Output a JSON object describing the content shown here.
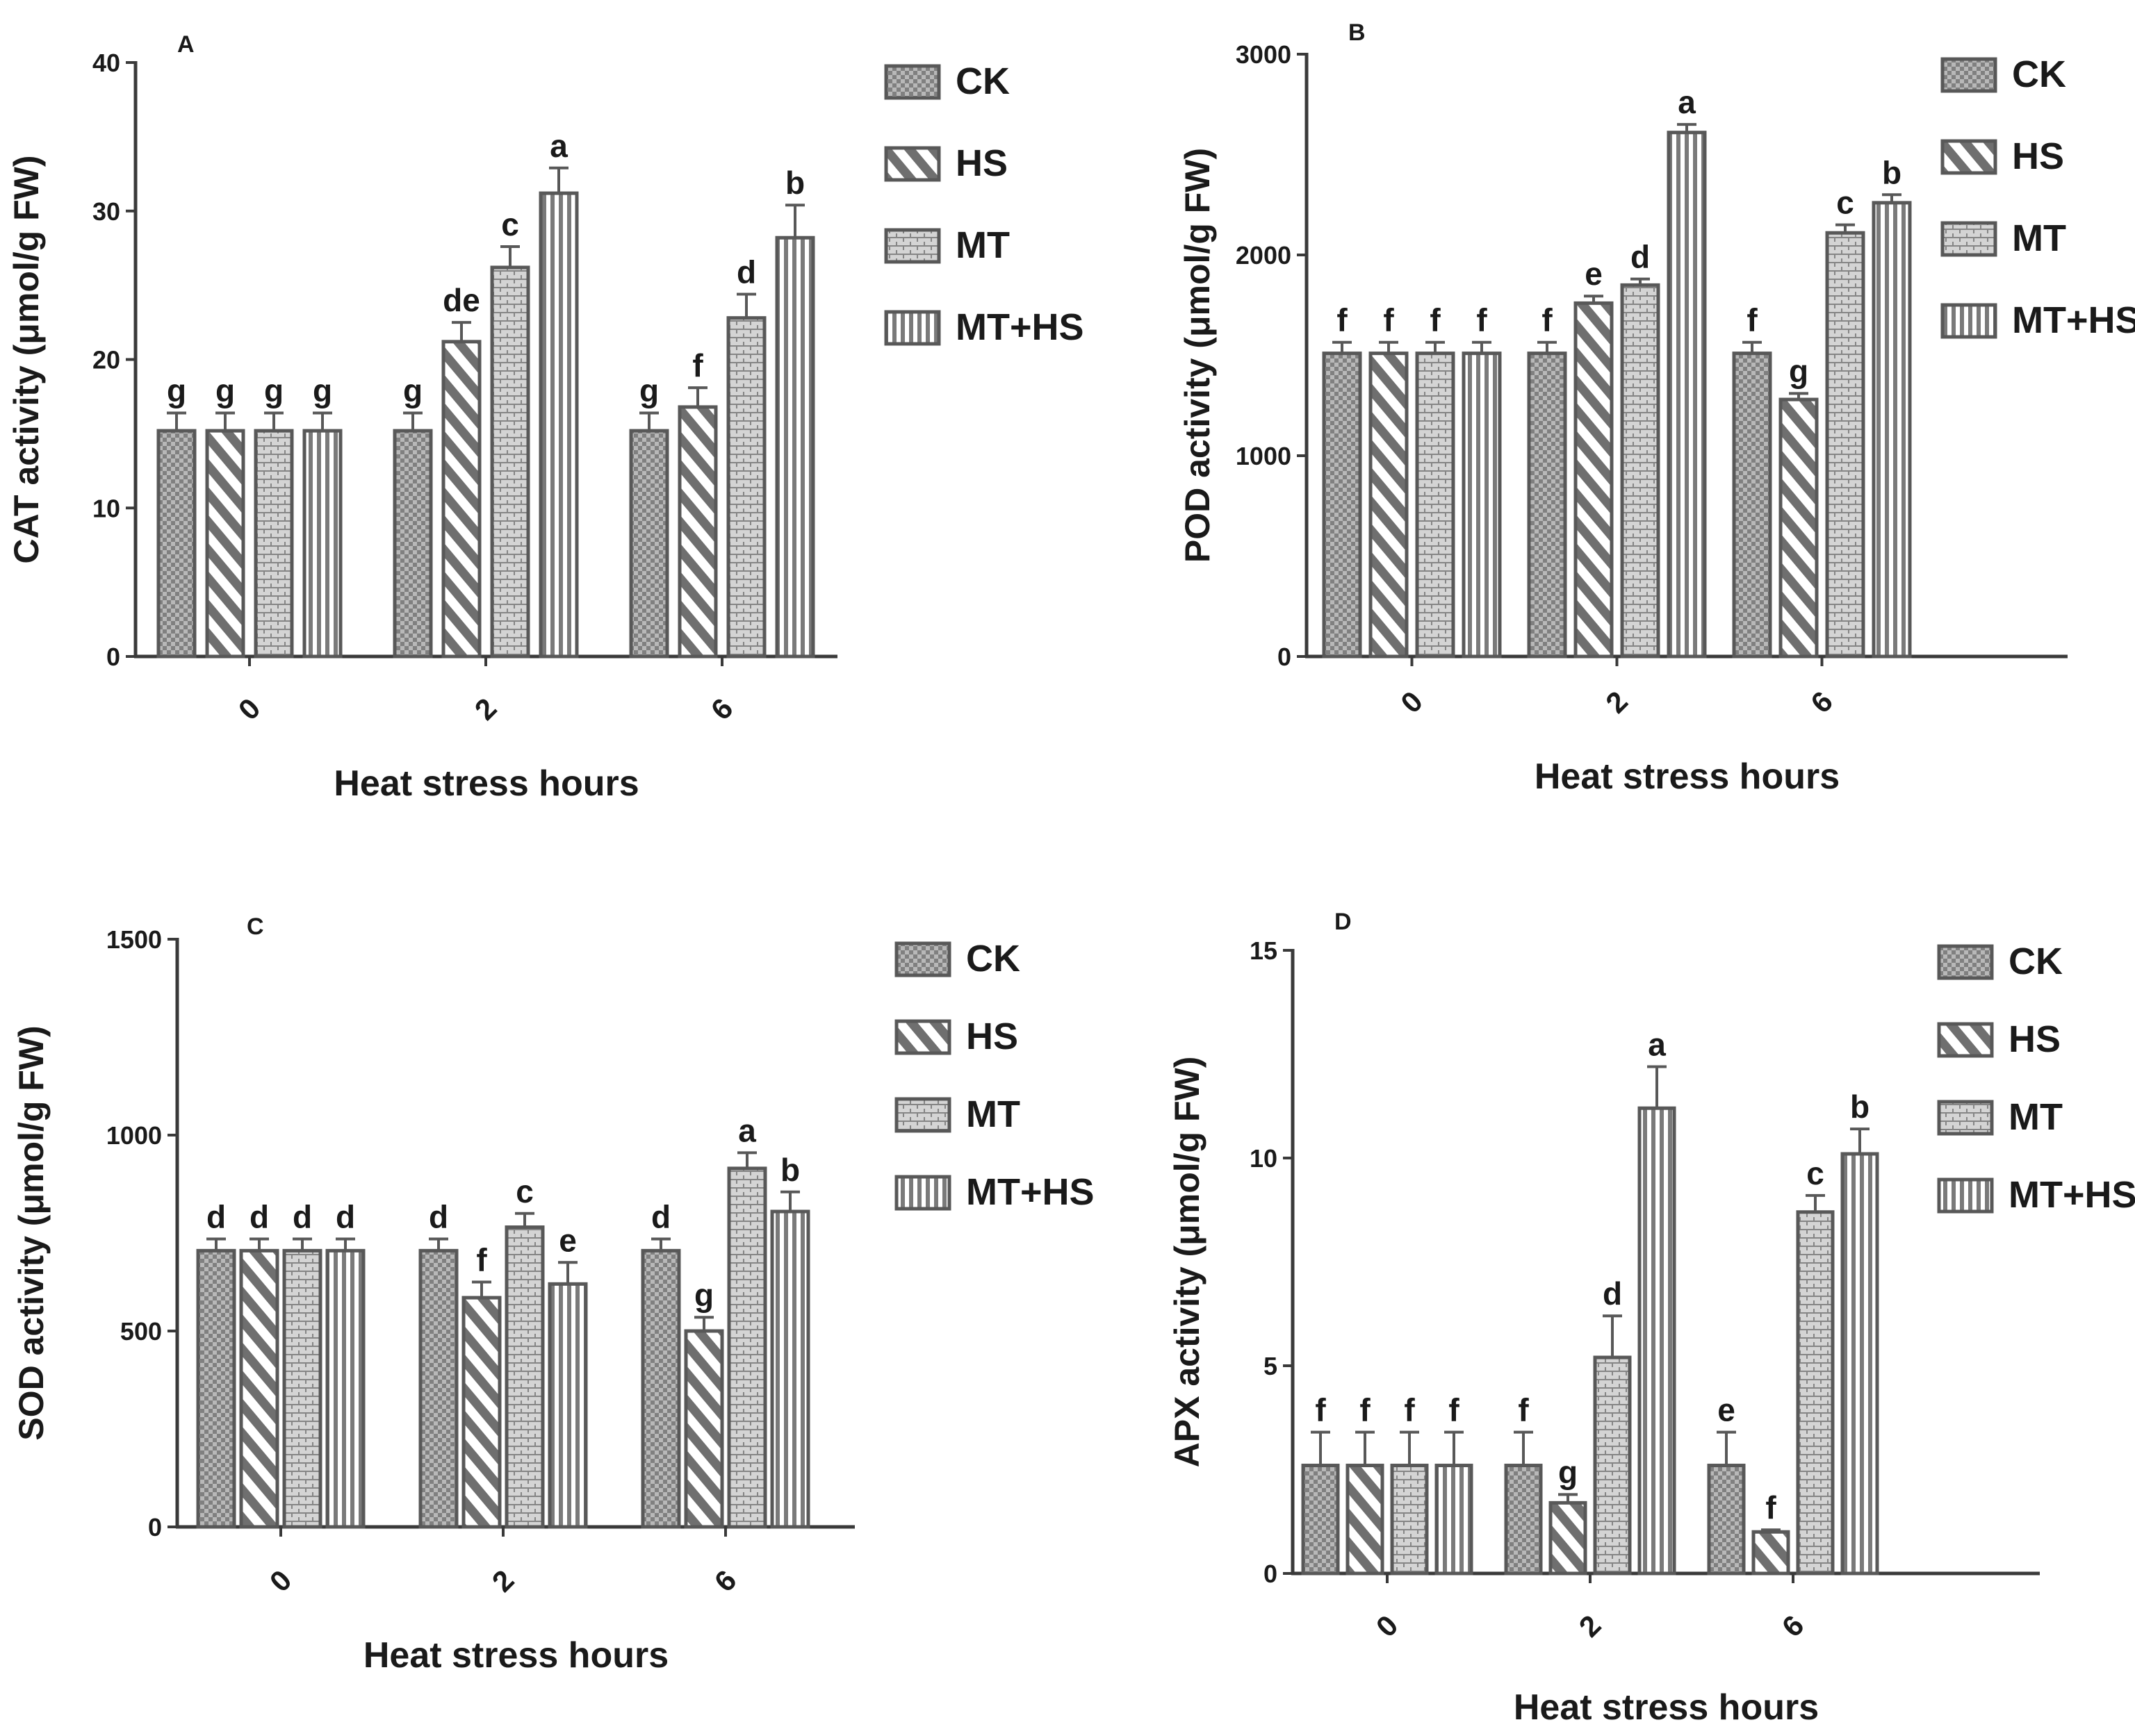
{
  "figure": {
    "xlabel": "Heat stress hours"
  },
  "chart_data": [
    {
      "type": "bar",
      "panel": "A",
      "title": "",
      "xlabel": "Heat stress hours",
      "ylabel": "CAT activity (μmol/g FW)",
      "ylim": [
        0,
        40
      ],
      "yticks": [
        0,
        10,
        20,
        30,
        40
      ],
      "ytick_labels": [
        "0",
        "10",
        "20",
        "30",
        "40"
      ],
      "categories": [
        "0",
        "2",
        "6"
      ],
      "legend": [
        "CK",
        "HS",
        "MT",
        "MT+HS"
      ],
      "series": [
        {
          "name": "CK",
          "values": [
            15.2,
            15.2,
            15.2
          ],
          "errors": [
            1.2,
            1.2,
            1.2
          ],
          "letters": [
            "g",
            "g",
            "g"
          ]
        },
        {
          "name": "HS",
          "values": [
            15.2,
            21.2,
            16.8
          ],
          "errors": [
            1.2,
            1.3,
            1.3
          ],
          "letters": [
            "g",
            "de",
            "f"
          ]
        },
        {
          "name": "MT",
          "values": [
            15.2,
            26.2,
            22.8
          ],
          "errors": [
            1.2,
            1.4,
            1.6
          ],
          "letters": [
            "g",
            "c",
            "d"
          ]
        },
        {
          "name": "MT+HS",
          "values": [
            15.2,
            31.2,
            28.2
          ],
          "errors": [
            1.2,
            1.7,
            2.2
          ],
          "letters": [
            "g",
            "a",
            "b"
          ]
        }
      ]
    },
    {
      "type": "bar",
      "panel": "B",
      "title": "",
      "xlabel": "Heat stress hours",
      "ylabel": "POD activity (μmol/g FW)",
      "ylim": [
        0,
        3000
      ],
      "yticks": [
        0,
        1000,
        2000,
        3000
      ],
      "ytick_labels": [
        "0",
        "1000",
        "2000",
        "3000"
      ],
      "categories": [
        "0",
        "2",
        "6"
      ],
      "legend": [
        "CK",
        "HS",
        "MT",
        "MT+HS"
      ],
      "series": [
        {
          "name": "CK",
          "values": [
            1510,
            1510,
            1510
          ],
          "errors": [
            55,
            55,
            55
          ],
          "letters": [
            "f",
            "f",
            "f"
          ]
        },
        {
          "name": "HS",
          "values": [
            1510,
            1760,
            1280
          ],
          "errors": [
            55,
            35,
            30
          ],
          "letters": [
            "f",
            "e",
            "g"
          ]
        },
        {
          "name": "MT",
          "values": [
            1510,
            1850,
            2110
          ],
          "errors": [
            55,
            30,
            40
          ],
          "letters": [
            "f",
            "d",
            "c"
          ]
        },
        {
          "name": "MT+HS",
          "values": [
            1510,
            2610,
            2260
          ],
          "errors": [
            55,
            40,
            40
          ],
          "letters": [
            "f",
            "a",
            "b"
          ]
        }
      ]
    },
    {
      "type": "bar",
      "panel": "C",
      "title": "",
      "xlabel": "Heat stress hours",
      "ylabel": "SOD activity (μmol/g FW)",
      "ylim": [
        0,
        1500
      ],
      "yticks": [
        0,
        500,
        1000,
        1500
      ],
      "ytick_labels": [
        "0",
        "500",
        "1000",
        "1500"
      ],
      "categories": [
        "0",
        "2",
        "6"
      ],
      "legend": [
        "CK",
        "HS",
        "MT",
        "MT+HS"
      ],
      "series": [
        {
          "name": "CK",
          "values": [
            705,
            705,
            705
          ],
          "errors": [
            30,
            30,
            30
          ],
          "letters": [
            "d",
            "d",
            "d"
          ]
        },
        {
          "name": "HS",
          "values": [
            705,
            585,
            500
          ],
          "errors": [
            30,
            40,
            35
          ],
          "letters": [
            "d",
            "f",
            "g"
          ]
        },
        {
          "name": "MT",
          "values": [
            705,
            765,
            915
          ],
          "errors": [
            30,
            35,
            40
          ],
          "letters": [
            "d",
            "c",
            "a"
          ]
        },
        {
          "name": "MT+HS",
          "values": [
            705,
            620,
            805
          ],
          "errors": [
            30,
            55,
            50
          ],
          "letters": [
            "d",
            "e",
            "b"
          ]
        }
      ]
    },
    {
      "type": "bar",
      "panel": "D",
      "title": "",
      "xlabel": "Heat stress hours",
      "ylabel": "APX activity (μmol/g FW)",
      "ylim": [
        0,
        15
      ],
      "yticks": [
        0,
        5,
        10,
        15
      ],
      "ytick_labels": [
        "0",
        "5",
        "10",
        "15"
      ],
      "categories": [
        "0",
        "2",
        "6"
      ],
      "legend": [
        "CK",
        "HS",
        "MT",
        "MT+HS"
      ],
      "series": [
        {
          "name": "CK",
          "values": [
            2.6,
            2.6,
            2.6
          ],
          "errors": [
            0.8,
            0.8,
            0.8
          ],
          "letters": [
            "f",
            "f",
            "e"
          ]
        },
        {
          "name": "HS",
          "values": [
            2.6,
            1.7,
            1.0
          ],
          "errors": [
            0.8,
            0.2,
            0.05
          ],
          "letters": [
            "f",
            "g",
            "f"
          ]
        },
        {
          "name": "MT",
          "values": [
            2.6,
            5.2,
            8.7
          ],
          "errors": [
            0.8,
            1.0,
            0.4
          ],
          "letters": [
            "f",
            "d",
            "c"
          ]
        },
        {
          "name": "MT+HS",
          "values": [
            2.6,
            11.2,
            10.1
          ],
          "errors": [
            0.8,
            1.0,
            0.6
          ],
          "letters": [
            "f",
            "a",
            "b"
          ]
        }
      ]
    }
  ]
}
